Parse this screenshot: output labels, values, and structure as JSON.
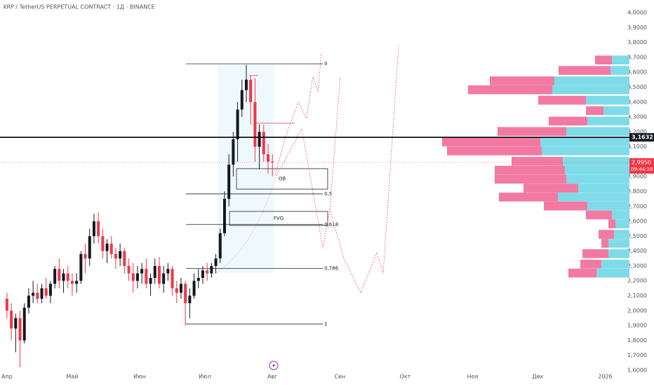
{
  "chart_data": {
    "type": "candlestick",
    "title": "XRP / TetherUS PERPETUAL CONTRACT · 1Д · BINANCE",
    "x": [
      0,
      2,
      4,
      6,
      8,
      10,
      12,
      14,
      16,
      18,
      20,
      22,
      24,
      26,
      28,
      30,
      32,
      34,
      36,
      38,
      40,
      42,
      44,
      46,
      48,
      50,
      52,
      54,
      56,
      58,
      60,
      62,
      64,
      66,
      68,
      70,
      72,
      74,
      76,
      78,
      80,
      82,
      84,
      86,
      88,
      90,
      92,
      94,
      96,
      98,
      100,
      102,
      104,
      106,
      108,
      110,
      112,
      114,
      116,
      118,
      120,
      122
    ],
    "open": [
      2.08,
      2.0,
      1.88,
      1.95,
      1.8,
      2.02,
      2.1,
      2.12,
      2.08,
      2.15,
      2.1,
      2.18,
      2.28,
      2.2,
      2.25,
      2.2,
      2.18,
      2.2,
      2.38,
      2.35,
      2.5,
      2.6,
      2.5,
      2.4,
      2.45,
      2.38,
      2.35,
      2.4,
      2.3,
      2.25,
      2.2,
      2.25,
      2.28,
      2.18,
      2.22,
      2.3,
      2.18,
      2.25,
      2.28,
      2.15,
      2.12,
      2.18,
      2.05,
      2.1,
      2.2,
      2.22,
      2.27,
      2.25,
      2.3,
      2.35,
      2.52,
      2.75,
      2.98,
      3.15,
      3.35,
      3.48,
      3.55,
      3.4,
      3.1,
      3.2,
      3.05,
      3.0
    ],
    "high": [
      2.12,
      2.05,
      1.98,
      2.0,
      2.05,
      2.15,
      2.2,
      2.18,
      2.18,
      2.22,
      2.2,
      2.3,
      2.35,
      2.28,
      2.3,
      2.25,
      2.25,
      2.4,
      2.45,
      2.55,
      2.65,
      2.66,
      2.55,
      2.48,
      2.5,
      2.42,
      2.45,
      2.42,
      2.35,
      2.32,
      2.3,
      2.32,
      2.35,
      2.25,
      2.35,
      2.36,
      2.3,
      2.32,
      2.3,
      2.2,
      2.22,
      2.2,
      2.15,
      2.25,
      2.28,
      2.3,
      2.32,
      2.32,
      2.38,
      2.55,
      2.8,
      3.05,
      3.2,
      3.4,
      3.55,
      3.65,
      3.58,
      3.56,
      3.25,
      3.25,
      3.12,
      3.05
    ],
    "low": [
      1.95,
      1.8,
      1.72,
      1.62,
      1.78,
      1.98,
      2.05,
      2.05,
      2.05,
      2.08,
      2.05,
      2.15,
      2.15,
      2.12,
      2.15,
      2.1,
      2.12,
      2.18,
      2.25,
      2.3,
      2.45,
      2.45,
      2.35,
      2.32,
      2.35,
      2.28,
      2.3,
      2.25,
      2.2,
      2.12,
      2.15,
      2.18,
      2.15,
      2.1,
      2.18,
      2.15,
      2.12,
      2.2,
      2.1,
      2.05,
      2.08,
      1.9,
      1.95,
      2.08,
      2.15,
      2.18,
      2.2,
      2.22,
      2.25,
      2.32,
      2.5,
      2.7,
      2.9,
      3.0,
      3.3,
      3.4,
      3.25,
      3.0,
      2.95,
      3.0,
      2.92,
      2.9
    ],
    "close": [
      2.0,
      1.88,
      1.95,
      1.8,
      2.02,
      2.1,
      2.12,
      2.08,
      2.15,
      2.1,
      2.18,
      2.28,
      2.2,
      2.25,
      2.2,
      2.18,
      2.2,
      2.38,
      2.35,
      2.5,
      2.6,
      2.5,
      2.4,
      2.45,
      2.38,
      2.35,
      2.4,
      2.3,
      2.25,
      2.2,
      2.25,
      2.28,
      2.18,
      2.22,
      2.3,
      2.18,
      2.25,
      2.28,
      2.15,
      2.12,
      2.18,
      2.05,
      2.1,
      2.2,
      2.22,
      2.27,
      2.25,
      2.3,
      2.35,
      2.52,
      2.75,
      2.98,
      3.15,
      3.35,
      3.48,
      3.55,
      3.4,
      3.1,
      3.2,
      3.05,
      3.0,
      2.995
    ],
    "up_color": "#131722",
    "down_color": "#f23645",
    "xlim": [
      -3.2,
      286.1
    ],
    "ylim": [
      1.548,
      4.085
    ],
    "xticks": [
      {
        "value": 0,
        "label": "Апр"
      },
      {
        "value": 30,
        "label": "Май"
      },
      {
        "value": 61,
        "label": "Июн"
      },
      {
        "value": 91,
        "label": "Июл"
      },
      {
        "value": 122,
        "label": "Авг"
      },
      {
        "value": 153,
        "label": "Сен"
      },
      {
        "value": 183,
        "label": "Окт"
      },
      {
        "value": 214,
        "label": "Ноя"
      },
      {
        "value": 244,
        "label": "Дек"
      },
      {
        "value": 275,
        "label": "2026"
      }
    ],
    "yticks": [
      {
        "value": 1.6,
        "label": "1,6000"
      },
      {
        "value": 1.7,
        "label": "1,7000"
      },
      {
        "value": 1.8,
        "label": "1,8000"
      },
      {
        "value": 1.9,
        "label": "1,9000"
      },
      {
        "value": 2.0,
        "label": "2,0000"
      },
      {
        "value": 2.1,
        "label": "2,1000"
      },
      {
        "value": 2.2,
        "label": "2,2000"
      },
      {
        "value": 2.3,
        "label": "2,3000"
      },
      {
        "value": 2.4,
        "label": "2,4000"
      },
      {
        "value": 2.5,
        "label": "2,5000"
      },
      {
        "value": 2.6,
        "label": "2,6000"
      },
      {
        "value": 2.7,
        "label": "2,7000"
      },
      {
        "value": 2.8,
        "label": "2,8000"
      },
      {
        "value": 2.9,
        "label": "2,9000"
      },
      {
        "value": 3.0,
        "label": "3,0000"
      },
      {
        "value": 3.1,
        "label": "3,1000"
      },
      {
        "value": 3.2,
        "label": "3,2000"
      },
      {
        "value": 3.3,
        "label": "3,3000"
      },
      {
        "value": 3.4,
        "label": "3,4000"
      },
      {
        "value": 3.5,
        "label": "3,5000"
      },
      {
        "value": 3.6,
        "label": "3,6000"
      },
      {
        "value": 3.7,
        "label": "3,7000"
      },
      {
        "value": 3.8,
        "label": "3,8000"
      },
      {
        "value": 3.9,
        "label": "3,9000"
      },
      {
        "value": 4.0,
        "label": "4,0000"
      }
    ],
    "fibonacci": {
      "x_range": [
        82.3,
        145.2
      ],
      "levels": [
        {
          "label": "0",
          "price": 3.657
        },
        {
          "label": "0,5",
          "price": 2.784
        },
        {
          "label": "0,618",
          "price": 2.578
        },
        {
          "label": "0,786",
          "price": 2.284
        },
        {
          "label": "1",
          "price": 1.91
        }
      ]
    },
    "zones": [
      {
        "label": "OB",
        "top": 2.953,
        "bottom": 2.816,
        "x_range": [
          105.5,
          147.4
        ]
      },
      {
        "label": "FVG",
        "top": 2.666,
        "bottom": 2.572,
        "x_range": [
          102.3,
          147.4
        ]
      }
    ],
    "projections": [
      {
        "x": [
          123.2,
          128.1,
          133.9,
          137.7,
          140.6,
          142.9,
          144.5
        ],
        "values": [
          2.91,
          3.17,
          3.4,
          3.29,
          3.57,
          3.47,
          3.73
        ]
      },
      {
        "x": [
          123.2,
          135.5,
          145.2,
          148.4,
          154.8,
          162.6,
          170.0,
          172.9,
          180.0
        ],
        "values": [
          2.89,
          3.22,
          2.42,
          2.68,
          2.35,
          2.12,
          2.39,
          2.25,
          3.78
        ]
      },
      {
        "x": [
          148.4,
          153.2
        ],
        "values": [
          2.68,
          3.57
        ]
      }
    ],
    "projection_color": "#f23645",
    "horizontal_line": {
      "value": 3.1632,
      "label": "3,1632"
    },
    "last_price": {
      "value": 2.995,
      "label": "2,9950",
      "countdown": "09:44:18"
    },
    "volume_profile": {
      "up_color": "#7fdbe8",
      "down_color": "#f27aa2",
      "half_height": 0.032,
      "rows": [
        {
          "price": 3.68,
          "up": 25,
          "down": 24
        },
        {
          "price": 3.61,
          "up": 27,
          "down": 74
        },
        {
          "price": 3.54,
          "up": 107,
          "down": 92
        },
        {
          "price": 3.48,
          "up": 110,
          "down": 120
        },
        {
          "price": 3.41,
          "up": 62,
          "down": 68
        },
        {
          "price": 3.34,
          "up": 37,
          "down": 25
        },
        {
          "price": 3.27,
          "up": 60,
          "down": 55
        },
        {
          "price": 3.2,
          "up": 90,
          "down": 98
        },
        {
          "price": 3.13,
          "up": 127,
          "down": 140
        },
        {
          "price": 3.07,
          "up": 125,
          "down": 135
        },
        {
          "price": 3.0,
          "up": 95,
          "down": 73
        },
        {
          "price": 2.94,
          "up": 92,
          "down": 100
        },
        {
          "price": 2.88,
          "up": 90,
          "down": 102
        },
        {
          "price": 2.82,
          "up": 73,
          "down": 78
        },
        {
          "price": 2.76,
          "up": 102,
          "down": 84
        },
        {
          "price": 2.7,
          "up": 60,
          "down": 62
        },
        {
          "price": 2.64,
          "up": 25,
          "down": 37
        },
        {
          "price": 2.58,
          "up": 20,
          "down": 10
        },
        {
          "price": 2.51,
          "up": 22,
          "down": 22
        },
        {
          "price": 2.45,
          "up": 30,
          "down": 10
        },
        {
          "price": 2.38,
          "up": 30,
          "down": 37
        },
        {
          "price": 2.31,
          "up": 40,
          "down": 30
        },
        {
          "price": 2.25,
          "up": 47,
          "down": 40
        }
      ]
    }
  }
}
